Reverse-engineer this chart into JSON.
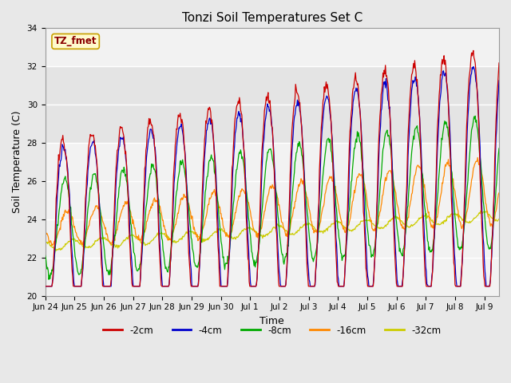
{
  "title": "Tonzi Soil Temperatures Set C",
  "xlabel": "Time",
  "ylabel": "Soil Temperature (C)",
  "ylim": [
    20,
    34
  ],
  "annotation_text": "TZ_fmet",
  "annotation_color": "#8B0000",
  "annotation_bg": "#FFFACD",
  "annotation_border": "#C8A000",
  "fig_bg": "#E8E8E8",
  "plot_bg": "#F2F2F2",
  "legend_labels": [
    "-2cm",
    "-4cm",
    "-8cm",
    "-16cm",
    "-32cm"
  ],
  "line_colors": [
    "#CC0000",
    "#0000CC",
    "#00AA00",
    "#FF8800",
    "#CCCC00"
  ],
  "tick_labels": [
    "Jun 24",
    "Jun 25",
    "Jun 26",
    "Jun 27",
    "Jun 28",
    "Jun 29",
    "Jun 30",
    "Jul 1",
    "Jul 2",
    "Jul 3",
    "Jul 4",
    "Jul 5",
    "Jul 6",
    "Jul 7",
    "Jul 8",
    "Jul 9"
  ],
  "tick_positions": [
    0,
    1,
    2,
    3,
    4,
    5,
    6,
    7,
    8,
    9,
    10,
    11,
    12,
    13,
    14,
    15
  ],
  "yticks": [
    20,
    22,
    24,
    26,
    28,
    30,
    32,
    34
  ],
  "n_days": 15.5,
  "pts_per_day": 48
}
